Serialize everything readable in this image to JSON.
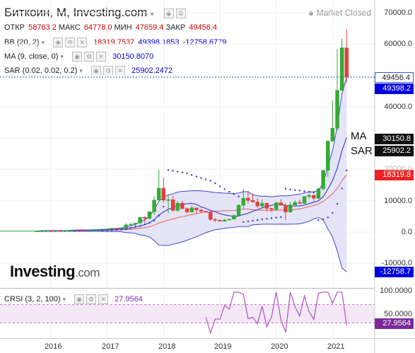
{
  "header": {
    "title": "Биткоин, M, Investing.com",
    "market_status": "Market Closed"
  },
  "ohlc": {
    "open_label": "ОТКР",
    "open": "58763.2",
    "high_label": "МАКС",
    "high": "64778.0",
    "low_label": "МИН",
    "low": "47659.4",
    "close_label": "ЗАКР",
    "close": "49456.4"
  },
  "indicators": {
    "bb": {
      "label": "BB (20, 2)",
      "v1": "18319.7537",
      "v2": "49398.1853",
      "v3": "-12758.6779"
    },
    "ma": {
      "label": "MA (9, close, 0)",
      "v1": "30150.8070"
    },
    "sar": {
      "label": "SAR (0.02, 0.02, 0.2)",
      "v1": "25902.2472"
    },
    "crsi": {
      "label": "CRSI (3, 2, 100)",
      "v1": "27.9564"
    }
  },
  "price_axis": {
    "ticks": [
      "70000.0",
      "60000.0",
      "50000.0",
      "40000.0",
      "30000.0",
      "20000.0",
      "10000.0",
      "0.0",
      "-10000.0"
    ],
    "tags": {
      "last": "49456.4",
      "bb_mid": "49398.2",
      "ma": "30150.8",
      "sar": "25902.2",
      "bb_upper": "18319.8",
      "bb_lower": "-12758.7"
    }
  },
  "crsi_axis": {
    "ticks": [
      "100.0000",
      "50.0000"
    ],
    "tag": "27.9564"
  },
  "time_axis": [
    "2016",
    "2017",
    "2018",
    "2019",
    "2020",
    "2021"
  ],
  "chart_labels": {
    "ma": "MA",
    "sar": "SAR"
  },
  "logo": {
    "main": "Investing",
    "suffix": ".com"
  },
  "colors": {
    "up": "#33aa33",
    "down": "#e04040",
    "bb_band": "#4444cc",
    "bb_fill": "#e4e4f6",
    "ma": "#e06060",
    "sar": "#3333cc",
    "crsi": "#b050c0",
    "crsi_fill": "#f4e8f6",
    "tag_blue": "#0000dd",
    "tag_black": "#111111",
    "tag_red": "#ee2222",
    "tag_purple": "#7a2a9a"
  },
  "chart_data": {
    "type": "candlestick",
    "interval": "monthly",
    "ylim": [
      -14500,
      72000
    ],
    "candles": [
      {
        "d": "2015-10",
        "o": 240,
        "h": 330,
        "l": 235,
        "c": 310
      },
      {
        "d": "2015-11",
        "o": 310,
        "h": 500,
        "l": 300,
        "c": 380
      },
      {
        "d": "2015-12",
        "o": 380,
        "h": 470,
        "l": 340,
        "c": 430
      },
      {
        "d": "2016-01",
        "o": 430,
        "h": 460,
        "l": 350,
        "c": 370
      },
      {
        "d": "2016-02",
        "o": 370,
        "h": 440,
        "l": 360,
        "c": 435
      },
      {
        "d": "2016-03",
        "o": 435,
        "h": 440,
        "l": 400,
        "c": 415
      },
      {
        "d": "2016-04",
        "o": 415,
        "h": 470,
        "l": 410,
        "c": 450
      },
      {
        "d": "2016-05",
        "o": 450,
        "h": 550,
        "l": 440,
        "c": 530
      },
      {
        "d": "2016-06",
        "o": 530,
        "h": 780,
        "l": 520,
        "c": 670
      },
      {
        "d": "2016-07",
        "o": 670,
        "h": 700,
        "l": 600,
        "c": 620
      },
      {
        "d": "2016-08",
        "o": 620,
        "h": 620,
        "l": 540,
        "c": 575
      },
      {
        "d": "2016-09",
        "o": 575,
        "h": 630,
        "l": 570,
        "c": 610
      },
      {
        "d": "2016-10",
        "o": 610,
        "h": 720,
        "l": 600,
        "c": 700
      },
      {
        "d": "2016-11",
        "o": 700,
        "h": 760,
        "l": 690,
        "c": 740
      },
      {
        "d": "2016-12",
        "o": 740,
        "h": 970,
        "l": 740,
        "c": 960
      },
      {
        "d": "2017-01",
        "o": 960,
        "h": 1150,
        "l": 750,
        "c": 970
      },
      {
        "d": "2017-02",
        "o": 970,
        "h": 1210,
        "l": 910,
        "c": 1190
      },
      {
        "d": "2017-03",
        "o": 1190,
        "h": 1300,
        "l": 900,
        "c": 1080
      },
      {
        "d": "2017-04",
        "o": 1080,
        "h": 1400,
        "l": 1060,
        "c": 1350
      },
      {
        "d": "2017-05",
        "o": 1350,
        "h": 2800,
        "l": 1300,
        "c": 2300
      },
      {
        "d": "2017-06",
        "o": 2300,
        "h": 3000,
        "l": 2100,
        "c": 2480
      },
      {
        "d": "2017-07",
        "o": 2480,
        "h": 2900,
        "l": 1800,
        "c": 2870
      },
      {
        "d": "2017-08",
        "o": 2870,
        "h": 4700,
        "l": 2700,
        "c": 4700
      },
      {
        "d": "2017-09",
        "o": 4700,
        "h": 4980,
        "l": 2970,
        "c": 4340
      },
      {
        "d": "2017-10",
        "o": 4340,
        "h": 6400,
        "l": 4100,
        "c": 6470
      },
      {
        "d": "2017-11",
        "o": 6470,
        "h": 11400,
        "l": 5500,
        "c": 10200
      },
      {
        "d": "2017-12",
        "o": 10200,
        "h": 19800,
        "l": 10800,
        "c": 14000
      },
      {
        "d": "2018-01",
        "o": 14000,
        "h": 17200,
        "l": 9400,
        "c": 10200
      },
      {
        "d": "2018-02",
        "o": 10200,
        "h": 11800,
        "l": 6000,
        "c": 10300
      },
      {
        "d": "2018-03",
        "o": 10300,
        "h": 11600,
        "l": 6500,
        "c": 6900
      },
      {
        "d": "2018-04",
        "o": 6900,
        "h": 9800,
        "l": 6500,
        "c": 9240
      },
      {
        "d": "2018-05",
        "o": 9240,
        "h": 9900,
        "l": 7200,
        "c": 7490
      },
      {
        "d": "2018-06",
        "o": 7490,
        "h": 7780,
        "l": 5800,
        "c": 6390
      },
      {
        "d": "2018-07",
        "o": 6390,
        "h": 8480,
        "l": 6100,
        "c": 7730
      },
      {
        "d": "2018-08",
        "o": 7730,
        "h": 7740,
        "l": 5900,
        "c": 7030
      },
      {
        "d": "2018-09",
        "o": 7030,
        "h": 7400,
        "l": 6100,
        "c": 6630
      },
      {
        "d": "2018-10",
        "o": 6630,
        "h": 6900,
        "l": 6200,
        "c": 6320
      },
      {
        "d": "2018-11",
        "o": 6320,
        "h": 6500,
        "l": 3600,
        "c": 4020
      },
      {
        "d": "2018-12",
        "o": 4020,
        "h": 4400,
        "l": 3200,
        "c": 3740
      },
      {
        "d": "2019-01",
        "o": 3740,
        "h": 4100,
        "l": 3350,
        "c": 3460
      },
      {
        "d": "2019-02",
        "o": 3460,
        "h": 4200,
        "l": 3400,
        "c": 3850
      },
      {
        "d": "2019-03",
        "o": 3850,
        "h": 4150,
        "l": 3700,
        "c": 4100
      },
      {
        "d": "2019-04",
        "o": 4100,
        "h": 5600,
        "l": 4050,
        "c": 5300
      },
      {
        "d": "2019-05",
        "o": 5300,
        "h": 9000,
        "l": 5200,
        "c": 8550
      },
      {
        "d": "2019-06",
        "o": 8550,
        "h": 13800,
        "l": 7500,
        "c": 10800
      },
      {
        "d": "2019-07",
        "o": 10800,
        "h": 13100,
        "l": 9100,
        "c": 10090
      },
      {
        "d": "2019-08",
        "o": 10090,
        "h": 12300,
        "l": 9400,
        "c": 9600
      },
      {
        "d": "2019-09",
        "o": 9600,
        "h": 10900,
        "l": 7800,
        "c": 8300
      },
      {
        "d": "2019-10",
        "o": 8300,
        "h": 10400,
        "l": 7300,
        "c": 9150
      },
      {
        "d": "2019-11",
        "o": 9150,
        "h": 9500,
        "l": 6500,
        "c": 7550
      },
      {
        "d": "2019-12",
        "o": 7550,
        "h": 7750,
        "l": 6400,
        "c": 7200
      },
      {
        "d": "2020-01",
        "o": 7200,
        "h": 9600,
        "l": 6900,
        "c": 9350
      },
      {
        "d": "2020-02",
        "o": 9350,
        "h": 10500,
        "l": 8400,
        "c": 8550
      },
      {
        "d": "2020-03",
        "o": 8550,
        "h": 9200,
        "l": 3800,
        "c": 6400
      },
      {
        "d": "2020-04",
        "o": 6400,
        "h": 9500,
        "l": 6200,
        "c": 8630
      },
      {
        "d": "2020-05",
        "o": 8630,
        "h": 10100,
        "l": 8100,
        "c": 9450
      },
      {
        "d": "2020-06",
        "o": 9450,
        "h": 10400,
        "l": 8900,
        "c": 9140
      },
      {
        "d": "2020-07",
        "o": 9140,
        "h": 11450,
        "l": 8950,
        "c": 11350
      },
      {
        "d": "2020-08",
        "o": 11350,
        "h": 12450,
        "l": 10600,
        "c": 11680
      },
      {
        "d": "2020-09",
        "o": 11680,
        "h": 12100,
        "l": 9900,
        "c": 10780
      },
      {
        "d": "2020-10",
        "o": 10780,
        "h": 14000,
        "l": 10400,
        "c": 13800
      },
      {
        "d": "2020-11",
        "o": 13800,
        "h": 19800,
        "l": 13200,
        "c": 19700
      },
      {
        "d": "2020-12",
        "o": 19700,
        "h": 29300,
        "l": 17600,
        "c": 29000
      },
      {
        "d": "2021-01",
        "o": 29000,
        "h": 41900,
        "l": 28800,
        "c": 33100
      },
      {
        "d": "2021-02",
        "o": 33100,
        "h": 58300,
        "l": 32400,
        "c": 45200
      },
      {
        "d": "2021-03",
        "o": 45200,
        "h": 61700,
        "l": 45000,
        "c": 58800
      },
      {
        "d": "2021-04",
        "o": 58763.2,
        "h": 64778.0,
        "l": 47659.4,
        "c": 49456.4
      }
    ],
    "crsi_ylim": [
      0,
      100
    ],
    "crsi_bands": [
      70,
      30
    ]
  }
}
